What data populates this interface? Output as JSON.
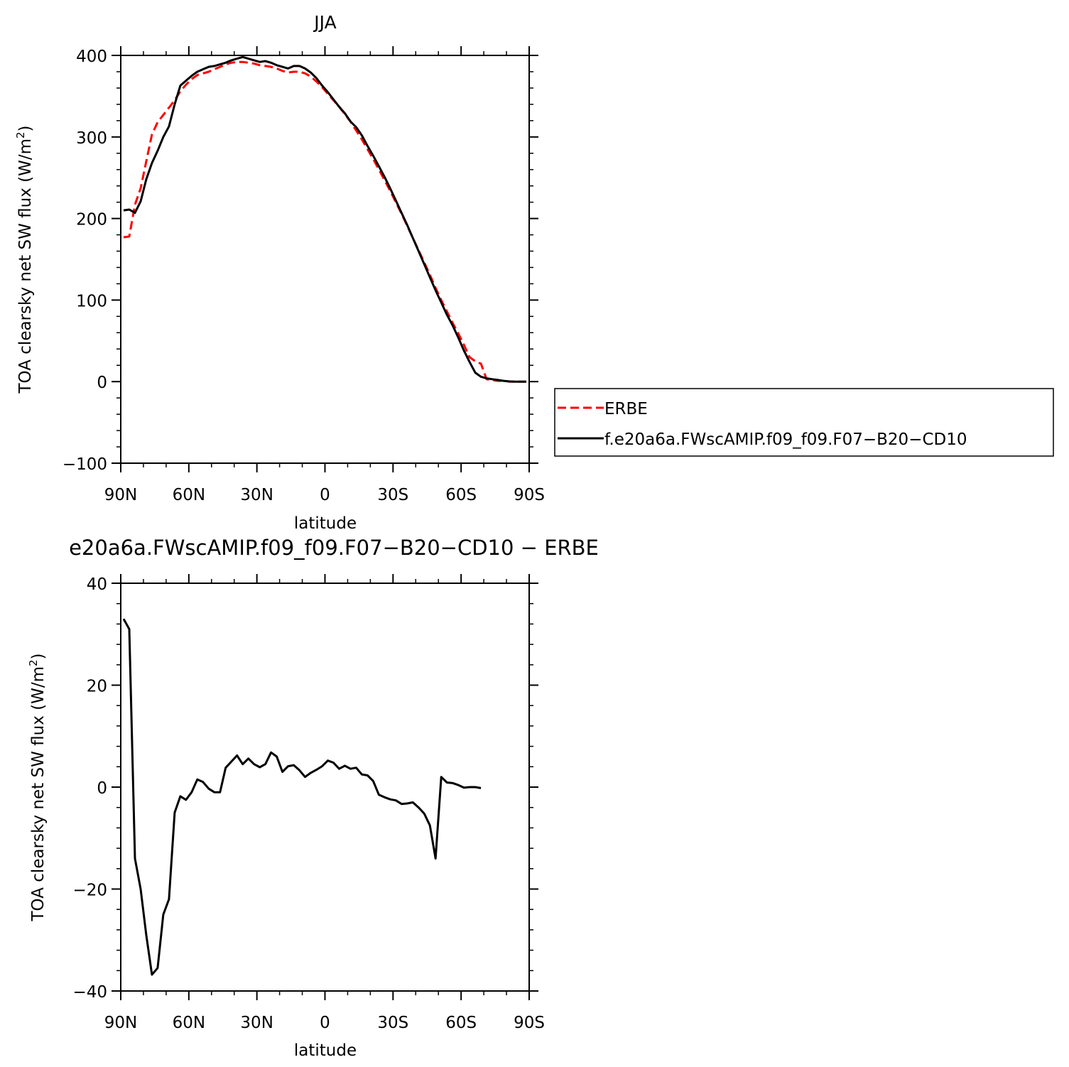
{
  "chart_data": [
    {
      "type": "line",
      "title": "JJA",
      "xlabel": "latitude",
      "ylabel": "TOA clearsky net SW flux (W/m",
      "ylabel_sup": "2",
      "ylabel_end": ")",
      "xlim": [
        90,
        -90
      ],
      "ylim": [
        -100,
        400
      ],
      "xticks": [
        90,
        60,
        30,
        0,
        -30,
        -60,
        -90
      ],
      "xtick_labels": [
        "90N",
        "60N",
        "30N",
        "0",
        "30S",
        "60S",
        "90S"
      ],
      "yticks": [
        -100,
        0,
        100,
        200,
        300,
        400
      ],
      "ytick_labels": [
        "−100",
        "0",
        "100",
        "200",
        "300",
        "400"
      ],
      "grid": false,
      "legend": "right",
      "series": [
        {
          "name": "ERBE",
          "color": "#ff0000",
          "dash": "dashed",
          "points": [
            [
              88.75,
              177
            ],
            [
              86.25,
              178
            ],
            [
              83.75,
              217
            ],
            [
              81.25,
              237
            ],
            [
              78.75,
              270
            ],
            [
              76.25,
              303
            ],
            [
              73.75,
              318
            ],
            [
              71.25,
              327
            ],
            [
              68.75,
              336
            ],
            [
              66.25,
              345
            ],
            [
              63.75,
              356
            ],
            [
              61.25,
              364
            ],
            [
              58.75,
              371
            ],
            [
              56.25,
              376
            ],
            [
              53.75,
              378
            ],
            [
              51.25,
              380
            ],
            [
              48.75,
              383
            ],
            [
              46.25,
              386
            ],
            [
              43.75,
              389
            ],
            [
              41.25,
              391
            ],
            [
              38.75,
              392
            ],
            [
              36.25,
              392
            ],
            [
              33.75,
              391
            ],
            [
              31.25,
              390
            ],
            [
              28.75,
              388
            ],
            [
              26.25,
              387
            ],
            [
              23.75,
              386
            ],
            [
              21.25,
              384
            ],
            [
              18.75,
              381
            ],
            [
              16.25,
              379
            ],
            [
              13.75,
              380
            ],
            [
              11.25,
              380
            ],
            [
              8.75,
              378
            ],
            [
              6.25,
              374
            ],
            [
              3.75,
              368
            ],
            [
              1.25,
              361
            ],
            [
              -1.25,
              353
            ],
            [
              -3.75,
              345
            ],
            [
              -6.25,
              337
            ],
            [
              -8.75,
              328
            ],
            [
              -11.25,
              319
            ],
            [
              -13.75,
              308
            ],
            [
              -16.25,
              297
            ],
            [
              -18.75,
              285
            ],
            [
              -21.25,
              273
            ],
            [
              -23.75,
              260
            ],
            [
              -26.25,
              247
            ],
            [
              -28.75,
              234
            ],
            [
              -31.25,
              220
            ],
            [
              -33.75,
              206
            ],
            [
              -36.25,
              191
            ],
            [
              -38.75,
              176
            ],
            [
              -41.25,
              161
            ],
            [
              -43.75,
              146
            ],
            [
              -46.25,
              131
            ],
            [
              -48.75,
              115
            ],
            [
              -51.25,
              100
            ],
            [
              -53.75,
              86
            ],
            [
              -56.25,
              72
            ],
            [
              -58.75,
              59
            ],
            [
              -61.25,
              45
            ],
            [
              -63.75,
              30
            ],
            [
              -66.25,
              25
            ],
            [
              -68.75,
              22
            ],
            [
              -71.25,
              3
            ],
            [
              -73.75,
              2
            ],
            [
              -76.25,
              1
            ],
            [
              -78.75,
              1
            ],
            [
              -81.25,
              0
            ],
            [
              -83.75,
              0
            ],
            [
              -86.25,
              0
            ],
            [
              -88.75,
              0
            ]
          ]
        },
        {
          "name": "f.e20a6a.FWscAMIP.f09_f09.F07−B20−CD10",
          "color": "#000000",
          "dash": "solid",
          "points": [
            [
              88.75,
              210
            ],
            [
              86.25,
              211
            ],
            [
              83.75,
              207
            ],
            [
              81.25,
              221
            ],
            [
              78.75,
              248
            ],
            [
              76.25,
              268
            ],
            [
              73.75,
              283
            ],
            [
              71.25,
              300
            ],
            [
              68.75,
              313
            ],
            [
              66.25,
              340
            ],
            [
              63.75,
              363
            ],
            [
              61.25,
              369
            ],
            [
              58.75,
              375
            ],
            [
              56.25,
              380
            ],
            [
              53.75,
              383
            ],
            [
              51.25,
              386
            ],
            [
              48.75,
              387
            ],
            [
              46.25,
              389
            ],
            [
              43.75,
              391
            ],
            [
              41.25,
              394
            ],
            [
              38.75,
              396
            ],
            [
              36.25,
              398
            ],
            [
              33.75,
              396
            ],
            [
              31.25,
              394
            ],
            [
              28.75,
              392
            ],
            [
              26.25,
              393
            ],
            [
              23.75,
              391
            ],
            [
              21.25,
              388
            ],
            [
              18.75,
              386
            ],
            [
              16.25,
              384
            ],
            [
              13.75,
              387
            ],
            [
              11.25,
              387
            ],
            [
              8.75,
              384
            ],
            [
              6.25,
              379
            ],
            [
              3.75,
              372
            ],
            [
              1.25,
              363
            ],
            [
              -1.25,
              355
            ],
            [
              -3.75,
              346
            ],
            [
              -6.25,
              337
            ],
            [
              -8.75,
              329
            ],
            [
              -11.25,
              319
            ],
            [
              -13.75,
              312
            ],
            [
              -16.25,
              302
            ],
            [
              -18.75,
              289
            ],
            [
              -21.25,
              277
            ],
            [
              -23.75,
              264
            ],
            [
              -26.25,
              251
            ],
            [
              -28.75,
              237
            ],
            [
              -31.25,
              222
            ],
            [
              -33.75,
              207
            ],
            [
              -36.25,
              192
            ],
            [
              -38.75,
              176
            ],
            [
              -41.25,
              160
            ],
            [
              -43.75,
              144
            ],
            [
              -46.25,
              128
            ],
            [
              -48.75,
              112
            ],
            [
              -51.25,
              97
            ],
            [
              -53.75,
              82
            ],
            [
              -56.25,
              69
            ],
            [
              -58.75,
              54
            ],
            [
              -61.25,
              38
            ],
            [
              -63.75,
              24
            ],
            [
              -66.25,
              11
            ],
            [
              -68.75,
              6
            ],
            [
              -71.25,
              4
            ],
            [
              -73.75,
              3
            ],
            [
              -76.25,
              2
            ],
            [
              -78.75,
              1
            ],
            [
              -81.25,
              0.3
            ],
            [
              -83.75,
              0
            ],
            [
              -86.25,
              0
            ],
            [
              -88.75,
              0
            ]
          ]
        }
      ]
    },
    {
      "type": "line",
      "title": "e20a6a.FWscAMIP.f09_f09.F07−B20−CD10 − ERBE",
      "xlabel": "latitude",
      "ylabel": "TOA clearsky net SW flux (W/m",
      "ylabel_sup": "2",
      "ylabel_end": ")",
      "xlim": [
        90,
        -90
      ],
      "ylim": [
        -40,
        40
      ],
      "xticks": [
        90,
        60,
        30,
        0,
        -30,
        -60,
        -90
      ],
      "xtick_labels": [
        "90N",
        "60N",
        "30N",
        "0",
        "30S",
        "60S",
        "90S"
      ],
      "yticks": [
        -40,
        -20,
        0,
        20,
        40
      ],
      "ytick_labels": [
        "−40",
        "−20",
        "0",
        "20",
        "40"
      ],
      "grid": false,
      "series": [
        {
          "color": "#000000",
          "dash": "solid",
          "points": [
            [
              88.75,
              33
            ],
            [
              86.25,
              31
            ],
            [
              83.75,
              -14
            ],
            [
              81.25,
              -20
            ],
            [
              78.75,
              -29
            ],
            [
              76.25,
              -36.8
            ],
            [
              73.75,
              -35.5
            ],
            [
              71.25,
              -25
            ],
            [
              68.75,
              -22
            ],
            [
              66.25,
              -5
            ],
            [
              63.75,
              -1.8
            ],
            [
              61.25,
              -2.5
            ],
            [
              58.75,
              -1
            ],
            [
              56.25,
              1.5
            ],
            [
              53.75,
              1
            ],
            [
              51.25,
              -0.3
            ],
            [
              48.75,
              -1
            ],
            [
              46.25,
              -1
            ],
            [
              43.75,
              3.8
            ],
            [
              41.25,
              5
            ],
            [
              38.75,
              6.2
            ],
            [
              36.25,
              4.5
            ],
            [
              33.75,
              5.6
            ],
            [
              31.25,
              4.5
            ],
            [
              28.75,
              3.9
            ],
            [
              26.25,
              4.5
            ],
            [
              23.75,
              6.8
            ],
            [
              21.25,
              6
            ],
            [
              18.75,
              3
            ],
            [
              16.25,
              4.1
            ],
            [
              13.75,
              4.3
            ],
            [
              11.25,
              3.3
            ],
            [
              8.75,
              2
            ],
            [
              6.25,
              2.8
            ],
            [
              3.75,
              3.4
            ],
            [
              1.25,
              4.1
            ],
            [
              -1.25,
              5.2
            ],
            [
              -3.75,
              4.8
            ],
            [
              -6.25,
              3.6
            ],
            [
              -8.75,
              4.2
            ],
            [
              -11.25,
              3.6
            ],
            [
              -13.75,
              3.8
            ],
            [
              -16.25,
              2.5
            ],
            [
              -18.75,
              2.3
            ],
            [
              -21.25,
              1.2
            ],
            [
              -23.75,
              -1.5
            ],
            [
              -26.25,
              -2
            ],
            [
              -28.75,
              -2.4
            ],
            [
              -31.25,
              -2.6
            ],
            [
              -33.75,
              -3.3
            ],
            [
              -36.25,
              -3.2
            ],
            [
              -38.75,
              -3
            ],
            [
              -41.25,
              -4
            ],
            [
              -43.75,
              -5.2
            ],
            [
              -46.25,
              -7.5
            ],
            [
              -48.75,
              -14
            ],
            [
              -51.25,
              2
            ],
            [
              -53.75,
              0.9
            ],
            [
              -56.25,
              0.8
            ],
            [
              -58.75,
              0.4
            ],
            [
              -61.25,
              -0.1
            ],
            [
              -63.75,
              0
            ],
            [
              -66.25,
              0
            ],
            [
              -68.75,
              -0.2
            ]
          ]
        }
      ]
    }
  ]
}
